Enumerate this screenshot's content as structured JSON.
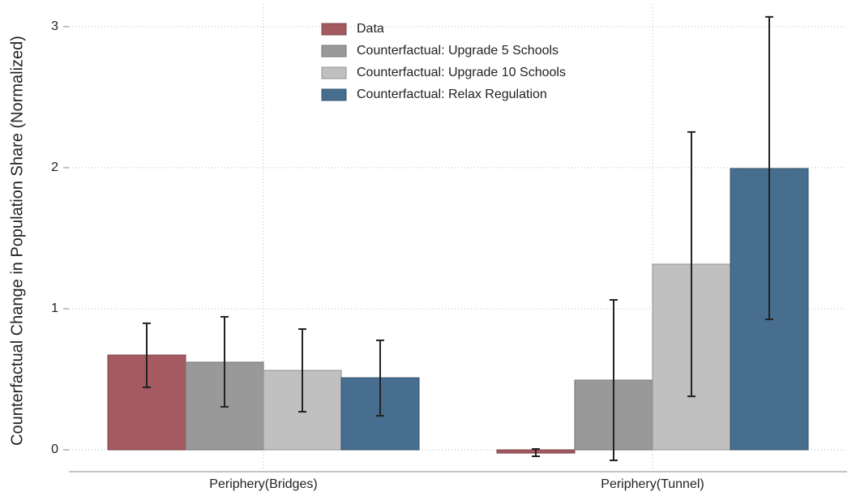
{
  "chart_data": {
    "type": "bar",
    "y_label": "Counterfactual Change in Population Share (Normalized)",
    "categories": [
      "Periphery(Bridges)",
      "Periphery(Tunnel)"
    ],
    "series": [
      {
        "name": "Data",
        "color": "#a45a60",
        "values": [
          0.672,
          -0.023
        ],
        "lower": [
          0.443,
          -0.046
        ],
        "upper": [
          0.897,
          0.006
        ]
      },
      {
        "name": "Counterfactual: Upgrade 5 Schools",
        "color": "#999999",
        "values": [
          0.621,
          0.494
        ],
        "lower": [
          0.305,
          -0.075
        ],
        "upper": [
          0.943,
          1.063
        ]
      },
      {
        "name": "Counterfactual: Upgrade 10 Schools",
        "color": "#c0c0c0",
        "values": [
          0.563,
          1.316
        ],
        "lower": [
          0.27,
          0.379
        ],
        "upper": [
          0.856,
          2.253
        ]
      },
      {
        "name": "Counterfactual: Relax Regulation",
        "color": "#476e8f",
        "values": [
          0.511,
          1.994
        ],
        "lower": [
          0.241,
          0.925
        ],
        "upper": [
          0.776,
          3.069
        ]
      }
    ],
    "ylim": [
      -0.155,
      3.16
    ],
    "yticks": [
      0,
      1,
      2,
      3
    ],
    "grid": true
  }
}
